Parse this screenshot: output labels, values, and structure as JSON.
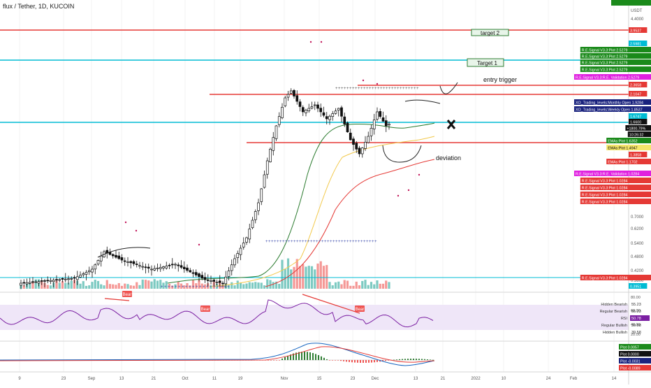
{
  "header": {
    "title": "flux / Tether, 1D, KUCOIN"
  },
  "price_axis": {
    "unit_label": "USDT",
    "top_label": "5",
    "ticks": [
      "4.4000",
      "0.7000",
      "0.6200",
      "0.5400",
      "0.4800",
      "0.4200",
      "0.3800"
    ]
  },
  "time_axis": {
    "ticks": [
      "9",
      "23",
      "Sep",
      "13",
      "21",
      "Oct",
      "11",
      "19",
      "Nov",
      "15",
      "23",
      "Dec",
      "13",
      "21",
      "2022",
      "10",
      "24",
      "Feb",
      "14"
    ]
  },
  "horizontal_lines": [
    {
      "name": "red-top",
      "color": "#e53935",
      "value": 3.9537
    },
    {
      "name": "cyan-upper",
      "color": "#00bcd4",
      "value": 2.5981
    },
    {
      "name": "red-mid",
      "color": "#e53935",
      "value": 2.3658
    },
    {
      "name": "red-low",
      "color": "#e53935",
      "value": 2.1047
    },
    {
      "name": "cyan-current",
      "color": "#00bcd4",
      "value": 1.6747
    },
    {
      "name": "red-support",
      "color": "#e53935",
      "value": 1.4947
    }
  ],
  "annotations": {
    "target2": "target 2",
    "target1": "Target 1",
    "entry_trigger": "entry trigger",
    "deviation": "deviation"
  },
  "axis_labels": [
    {
      "text": "3.9537",
      "bg": "#e53935",
      "color": "#ffffff"
    },
    {
      "text": "2.5981",
      "bg": "#00bcd4",
      "color": "#ffffff"
    },
    {
      "text": "R.E.Signal V3.3:Plot  2.5279",
      "bg": "#1b8a1b",
      "color": "#ffffff"
    },
    {
      "text": "R.E.Signal V3.3:Plot  2.5279",
      "bg": "#1b8a1b",
      "color": "#ffffff"
    },
    {
      "text": "R.E.Signal V3.3:Plot  2.5279",
      "bg": "#1b8a1b",
      "color": "#ffffff"
    },
    {
      "text": "R.E.Signal V3.3:Plot  2.5279",
      "bg": "#1b8a1b",
      "color": "#ffffff"
    },
    {
      "text": "R.E.Signal V3.3:R.E. Validation  2.5279",
      "bg": "#e020e0",
      "color": "#ffffff"
    },
    {
      "text": "2.3658",
      "bg": "#e53935",
      "color": "#ffffff"
    },
    {
      "text": "2.1047",
      "bg": "#e53935",
      "color": "#ffffff"
    },
    {
      "text": "XO_Trading_levels:Monthly Open  1.9284",
      "bg": "#1a237e",
      "color": "#ffffff"
    },
    {
      "text": "XO_Trading_levels:Weekly Open  1.8537",
      "bg": "#1a237e",
      "color": "#ffffff"
    },
    {
      "text": "1.6747",
      "bg": "#00bcd4",
      "color": "#ffffff"
    },
    {
      "text": "1.6600",
      "bg": "#111111",
      "color": "#ffffff"
    },
    {
      "text": "+1800.79%",
      "bg": "#111111",
      "color": "#ffffff"
    },
    {
      "text": "10:26:32",
      "bg": "#111111",
      "color": "#ffffff"
    },
    {
      "text": "EMAs:Plot  1.6352",
      "bg": "#1b8a1b",
      "color": "#ffffff"
    },
    {
      "text": "EMAs:Plot  1.4947",
      "bg": "#f5e66a",
      "color": "#000000"
    },
    {
      "text": "1.3858",
      "bg": "#e53935",
      "color": "#ffffff"
    },
    {
      "text": "EMAs:Plot  1.1702",
      "bg": "#e53935",
      "color": "#ffffff"
    },
    {
      "text": "R.E.Signal V3.3:R.E. Validation  1.0284",
      "bg": "#e020e0",
      "color": "#ffffff"
    },
    {
      "text": "R.E.Signal V3.3:Plot  1.0284",
      "bg": "#e53935",
      "color": "#ffffff"
    },
    {
      "text": "R.E.Signal V3.3:Plot  1.0284",
      "bg": "#e53935",
      "color": "#ffffff"
    },
    {
      "text": "R.E.Signal V3.3:Plot  1.0284",
      "bg": "#e53935",
      "color": "#ffffff"
    },
    {
      "text": "R.E.Signal V3.3:Plot  1.0284",
      "bg": "#e53935",
      "color": "#ffffff"
    },
    {
      "text": "R.E.Signal V3.3:Plot  1.0284",
      "bg": "#e53935",
      "color": "#ffffff"
    },
    {
      "text": "0.3951",
      "bg": "#00bcd4",
      "color": "#ffffff"
    },
    {
      "text": "Volume  1.8566M",
      "bg": "#1b8a1b",
      "color": "#ffffff"
    }
  ],
  "rsi_panel": {
    "ticks": [
      "80.00",
      "60.00",
      "40.00",
      "20.00"
    ],
    "bear_label": "Bear",
    "legend": [
      {
        "label": "Hidden Bearish",
        "value": "55.23"
      },
      {
        "label": "Regular Bearish",
        "value": "55.23"
      },
      {
        "label": "RSI",
        "value": "50.78"
      },
      {
        "label": "Regular Bullish",
        "value": "39.58"
      },
      {
        "label": "Hidden Bullish",
        "value": "39.58"
      }
    ]
  },
  "macd_panel": {
    "labels": [
      {
        "text": "Plot  0.0057",
        "bg": "#1b8a1b"
      },
      {
        "text": "Plot  0.0000",
        "bg": "#111111"
      },
      {
        "text": "Plot  -0.0031",
        "bg": "#1a237e"
      },
      {
        "text": "Plot  -0.0089",
        "bg": "#e53935"
      }
    ]
  },
  "chart_data": {
    "type": "line",
    "title": "flux / Tether, 1D, KUCOIN",
    "last_price": 1.66,
    "change_percent": "+1800.79%",
    "countdown": "10:26:32",
    "volume_last": "1.8566M",
    "rsi_last": 50.78,
    "colors": {
      "up": "#26a69a",
      "down": "#ef5350",
      "candle": "#111111",
      "ema_fast": "#2e7d32",
      "ema_mid": "#f2c94c",
      "ema_slow": "#e53935",
      "rsi": "#7b1fa2",
      "rsi_band": "#ede3f7",
      "macd": "#1565c0",
      "signal": "#e53935"
    }
  }
}
